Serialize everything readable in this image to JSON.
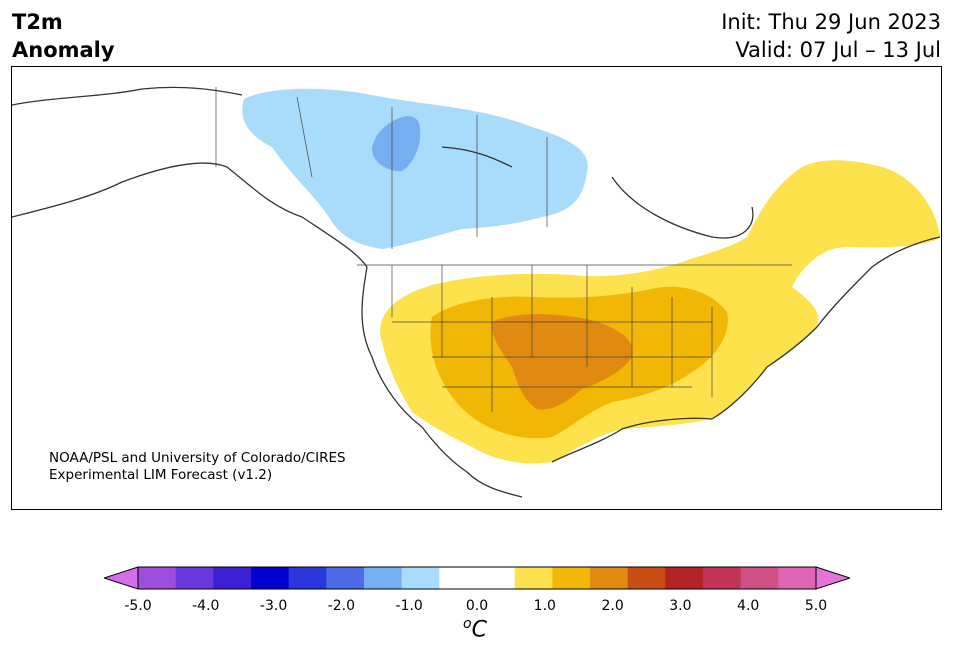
{
  "title": {
    "line1": "T2m",
    "line2": "Anomaly"
  },
  "header": {
    "init": "Init: Thu 29 Jun 2023",
    "valid": "Valid: 07 Jul – 13 Jul"
  },
  "credit": {
    "line1": "NOAA/PSL and University of Colorado/CIRES",
    "line2": "Experimental LIM Forecast (v1.2)"
  },
  "colorbar": {
    "unit_base": "C",
    "unit_sup": "o",
    "tick_labels": [
      "-5.0",
      "-4.0",
      "-3.0",
      "-2.0",
      "-1.0",
      "0.0",
      "1.0",
      "2.0",
      "3.0",
      "4.0",
      "5.0"
    ],
    "colors": [
      "#d36ee8",
      "#9b4fdd",
      "#6a36dd",
      "#3b1fd4",
      "#0000d2",
      "#2838dc",
      "#4d6be6",
      "#76aef2",
      "#a9dcfa",
      "#ffffff",
      "#ffffff",
      "#fde14d",
      "#f2b705",
      "#e08b10",
      "#c84e14",
      "#b32328",
      "#c23456",
      "#d04f86",
      "#de64b6",
      "#e574d8"
    ]
  },
  "map": {
    "colors": {
      "cold1": "#a9dcfa",
      "cold2": "#76aef2",
      "warm1": "#fde14d",
      "warm2": "#f2b705",
      "warm3": "#e08b10",
      "coast": "#333333"
    }
  }
}
